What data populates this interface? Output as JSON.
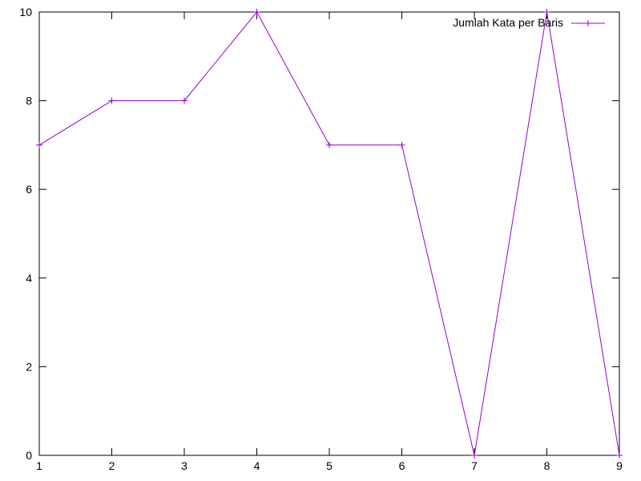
{
  "chart_data": {
    "type": "line",
    "title": "",
    "xlabel": "",
    "ylabel": "",
    "x": [
      1,
      2,
      3,
      4,
      5,
      6,
      7,
      8,
      9
    ],
    "xlim": [
      1,
      9
    ],
    "ylim": [
      0,
      10
    ],
    "x_ticks": [
      "1",
      "2",
      "3",
      "4",
      "5",
      "6",
      "7",
      "8",
      "9"
    ],
    "y_ticks": [
      "0",
      "2",
      "4",
      "6",
      "8",
      "10"
    ],
    "grid": false,
    "legend_position": "top-right",
    "series": [
      {
        "name": "Jumlah Kata per Baris",
        "color": "#9400d3",
        "marker": "plus",
        "values": [
          7,
          8,
          8,
          10,
          7,
          7,
          0,
          10,
          0
        ]
      }
    ]
  }
}
